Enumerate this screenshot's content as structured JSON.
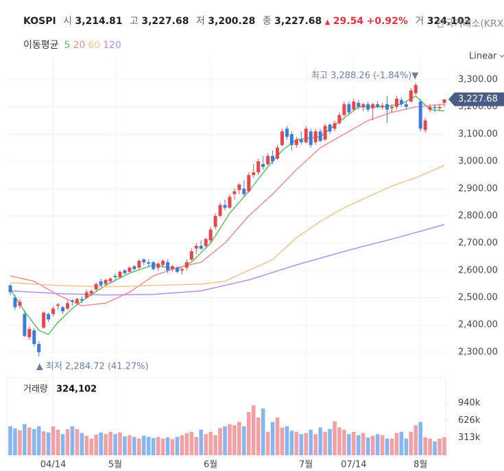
{
  "header": {
    "symbol": "KOSPI",
    "open_label": "시",
    "open": "3,214.81",
    "high_label": "고",
    "high": "3,227.68",
    "low_label": "저",
    "low": "3,200.28",
    "close_label": "종",
    "close": "3,227.68",
    "arrow": "▲",
    "change": "29.54",
    "change_pct": "+0.92%",
    "volume_label": "거",
    "volume": "324,102",
    "source": "한국거래소(KRX)"
  },
  "chart_data": {
    "type": "candlestick",
    "scale_label": "Linear",
    "up_color": "#e8454d",
    "down_color": "#3b7be0",
    "volume_up_color": "#f2a0a4",
    "volume_down_color": "#86b6f2",
    "ylim": [
      2257,
      3378
    ],
    "yticks": [
      {
        "value": 2300,
        "label": "2,300.00"
      },
      {
        "value": 2400,
        "label": "2,400.00"
      },
      {
        "value": 2500,
        "label": "2,500.00"
      },
      {
        "value": 2600,
        "label": "2,600.00"
      },
      {
        "value": 2700,
        "label": "2,700.00"
      },
      {
        "value": 2800,
        "label": "2,800.00"
      },
      {
        "value": 2900,
        "label": "2,900.00"
      },
      {
        "value": 3000,
        "label": "3,000.00"
      },
      {
        "value": 3100,
        "label": "3,100.00"
      },
      {
        "value": 3200,
        "label": "3,200.00"
      },
      {
        "value": 3300,
        "label": "3,300.00"
      }
    ],
    "xlim": [
      0,
      91
    ],
    "xticks": [
      {
        "value": 9,
        "label": "04/14"
      },
      {
        "value": 22,
        "label": "5월"
      },
      {
        "value": 42,
        "label": "6월"
      },
      {
        "value": 62,
        "label": "7월"
      },
      {
        "value": 72,
        "label": "07/14"
      },
      {
        "value": 86,
        "label": "8월"
      }
    ],
    "last_price": {
      "value": 3227.68,
      "label": "3,227.68"
    },
    "high_note": {
      "index": 85,
      "value": 3288.26,
      "label": "최고 3,288.26 (-1.84%)▼"
    },
    "low_note": {
      "index": 6,
      "value": 2284.72,
      "label": "▲ 최저 2,284.72 (41.27%)"
    },
    "candles": [
      [
        2545,
        2550,
        2510,
        2520
      ],
      [
        2500,
        2510,
        2455,
        2465
      ],
      [
        2470,
        2495,
        2460,
        2485
      ],
      [
        2440,
        2450,
        2355,
        2360
      ],
      [
        2355,
        2395,
        2345,
        2385
      ],
      [
        2380,
        2390,
        2320,
        2330
      ],
      [
        2330,
        2340,
        2284.72,
        2300
      ],
      [
        2390,
        2450,
        2385,
        2445
      ],
      [
        2440,
        2445,
        2410,
        2420
      ],
      [
        2440,
        2470,
        2430,
        2460
      ],
      [
        2470,
        2480,
        2455,
        2475
      ],
      [
        2465,
        2470,
        2440,
        2450
      ],
      [
        2460,
        2490,
        2455,
        2480
      ],
      [
        2490,
        2495,
        2470,
        2485
      ],
      [
        2480,
        2500,
        2475,
        2495
      ],
      [
        2495,
        2505,
        2480,
        2490
      ],
      [
        2500,
        2530,
        2495,
        2520
      ],
      [
        2515,
        2530,
        2505,
        2525
      ],
      [
        2530,
        2555,
        2525,
        2550
      ],
      [
        2560,
        2570,
        2540,
        2545
      ],
      [
        2550,
        2570,
        2545,
        2565
      ],
      [
        2560,
        2575,
        2555,
        2570
      ],
      [
        2580,
        2590,
        2565,
        2575
      ],
      [
        2575,
        2600,
        2570,
        2595
      ],
      [
        2600,
        2605,
        2585,
        2590
      ],
      [
        2595,
        2615,
        2590,
        2610
      ],
      [
        2615,
        2620,
        2600,
        2605
      ],
      [
        2610,
        2640,
        2605,
        2635
      ],
      [
        2640,
        2645,
        2620,
        2630
      ],
      [
        2630,
        2640,
        2615,
        2625
      ],
      [
        2630,
        2635,
        2600,
        2605
      ],
      [
        2610,
        2630,
        2600,
        2625
      ],
      [
        2620,
        2640,
        2610,
        2635
      ],
      [
        2630,
        2640,
        2590,
        2600
      ],
      [
        2605,
        2620,
        2595,
        2615
      ],
      [
        2610,
        2615,
        2590,
        2595
      ],
      [
        2600,
        2610,
        2585,
        2605
      ],
      [
        2610,
        2640,
        2600,
        2630
      ],
      [
        2640,
        2680,
        2635,
        2670
      ],
      [
        2680,
        2700,
        2660,
        2690
      ],
      [
        2690,
        2710,
        2675,
        2680
      ],
      [
        2690,
        2720,
        2680,
        2715
      ],
      [
        2710,
        2760,
        2700,
        2750
      ],
      [
        2760,
        2810,
        2750,
        2800
      ],
      [
        2800,
        2850,
        2795,
        2840
      ],
      [
        2840,
        2860,
        2820,
        2830
      ],
      [
        2830,
        2880,
        2825,
        2870
      ],
      [
        2880,
        2900,
        2860,
        2890
      ],
      [
        2895,
        2920,
        2880,
        2915
      ],
      [
        2900,
        2930,
        2870,
        2880
      ],
      [
        2890,
        2960,
        2885,
        2950
      ],
      [
        2950,
        2990,
        2940,
        2960
      ],
      [
        2960,
        3010,
        2950,
        3000
      ],
      [
        2990,
        3020,
        2970,
        2980
      ],
      [
        2990,
        3030,
        2985,
        3020
      ],
      [
        3020,
        3040,
        2990,
        3000
      ],
      [
        3010,
        3060,
        3005,
        3050
      ],
      [
        3060,
        3120,
        3055,
        3110
      ],
      [
        3120,
        3130,
        3080,
        3090
      ],
      [
        3100,
        3110,
        3040,
        3060
      ],
      [
        3060,
        3090,
        3050,
        3080
      ],
      [
        3080,
        3110,
        3060,
        3070
      ],
      [
        3070,
        3130,
        3065,
        3120
      ],
      [
        3110,
        3120,
        3050,
        3060
      ],
      [
        3070,
        3120,
        3060,
        3110
      ],
      [
        3110,
        3120,
        3070,
        3075
      ],
      [
        3080,
        3140,
        3075,
        3130
      ],
      [
        3135,
        3140,
        3100,
        3110
      ],
      [
        3120,
        3150,
        3110,
        3140
      ],
      [
        3140,
        3180,
        3135,
        3170
      ],
      [
        3170,
        3220,
        3165,
        3210
      ],
      [
        3210,
        3220,
        3170,
        3180
      ],
      [
        3190,
        3230,
        3185,
        3220
      ],
      [
        3215,
        3225,
        3190,
        3200
      ],
      [
        3200,
        3215,
        3185,
        3210
      ],
      [
        3210,
        3220,
        3180,
        3190
      ],
      [
        3195,
        3215,
        3150,
        3210
      ],
      [
        3210,
        3220,
        3195,
        3200
      ],
      [
        3200,
        3215,
        3190,
        3205
      ],
      [
        3210,
        3240,
        3140,
        3190
      ],
      [
        3195,
        3210,
        3180,
        3200
      ],
      [
        3200,
        3240,
        3190,
        3230
      ],
      [
        3225,
        3235,
        3200,
        3210
      ],
      [
        3210,
        3220,
        3190,
        3200
      ],
      [
        3220,
        3270,
        3215,
        3260
      ],
      [
        3250,
        3288.26,
        3245,
        3280
      ],
      [
        3220,
        3230,
        3110,
        3120
      ],
      [
        3115,
        3160,
        3105,
        3150
      ],
      [
        3190,
        3210,
        3180,
        3200
      ],
      [
        3200,
        3210,
        3180,
        3195
      ],
      [
        3195,
        3210,
        3185,
        3200
      ],
      [
        3214.81,
        3227.68,
        3200.28,
        3227.68
      ]
    ],
    "ma_label": "이동평균",
    "ma": [
      {
        "name": "5",
        "color": "#5cc15c",
        "x": [
          0,
          3,
          6,
          8,
          10,
          13,
          16,
          20,
          25,
          30,
          35,
          38,
          42,
          46,
          50,
          54,
          57,
          60,
          65,
          70,
          73,
          78,
          82,
          85,
          88,
          91
        ],
        "values": [
          2530,
          2450,
          2380,
          2365,
          2410,
          2460,
          2500,
          2545,
          2590,
          2620,
          2605,
          2630,
          2700,
          2810,
          2890,
          2980,
          3040,
          3080,
          3090,
          3160,
          3200,
          3200,
          3210,
          3240,
          3190,
          3185
        ]
      },
      {
        "name": "20",
        "color": "#f08a8c",
        "x": [
          0,
          5,
          10,
          15,
          20,
          25,
          30,
          35,
          40,
          45,
          50,
          55,
          60,
          65,
          70,
          75,
          80,
          85,
          91
        ],
        "values": [
          2580,
          2560,
          2510,
          2470,
          2480,
          2520,
          2580,
          2610,
          2630,
          2700,
          2800,
          2880,
          2970,
          3050,
          3100,
          3150,
          3180,
          3200,
          3210
        ]
      },
      {
        "name": "60",
        "color": "#f5c28a",
        "x": [
          0,
          10,
          20,
          30,
          40,
          45,
          50,
          55,
          60,
          65,
          70,
          75,
          80,
          85,
          91
        ],
        "values": [
          2555,
          2545,
          2540,
          2545,
          2550,
          2560,
          2600,
          2640,
          2720,
          2780,
          2830,
          2870,
          2910,
          2940,
          2985
        ]
      },
      {
        "name": "120",
        "color": "#b48bf0",
        "x": [
          0,
          10,
          20,
          30,
          40,
          50,
          60,
          70,
          80,
          91
        ],
        "values": [
          2525,
          2515,
          2510,
          2512,
          2525,
          2565,
          2620,
          2670,
          2715,
          2768
        ]
      }
    ],
    "volume_title": "거래량",
    "volume_last": "324,102",
    "vlim": [
      0,
      1150000
    ],
    "vticks": [
      {
        "value": 313000,
        "label": "313k"
      },
      {
        "value": 626000,
        "label": "626k"
      },
      {
        "value": 940000,
        "label": "940k"
      }
    ],
    "volume": [
      520000,
      480000,
      450000,
      560000,
      500000,
      470000,
      520000,
      430000,
      410000,
      520000,
      460000,
      380000,
      470000,
      520000,
      470000,
      400000,
      350000,
      300000,
      370000,
      410000,
      380000,
      420000,
      380000,
      410000,
      340000,
      360000,
      330000,
      300000,
      350000,
      330000,
      310000,
      330000,
      300000,
      320000,
      290000,
      330000,
      360000,
      400000,
      420000,
      330000,
      460000,
      380000,
      420000,
      360000,
      490000,
      520000,
      560000,
      540000,
      600000,
      520000,
      780000,
      900000,
      680000,
      840000,
      420000,
      600000,
      680000,
      500000,
      520000,
      440000,
      420000,
      380000,
      400000,
      460000,
      380000,
      500000,
      420000,
      470000,
      610000,
      500000,
      460000,
      380000,
      420000,
      360000,
      400000,
      320000,
      350000,
      380000,
      360000,
      300000,
      300000,
      400000,
      420000,
      300000,
      420000,
      540000,
      600000,
      320000,
      300000,
      250000,
      300000,
      324102
    ]
  }
}
